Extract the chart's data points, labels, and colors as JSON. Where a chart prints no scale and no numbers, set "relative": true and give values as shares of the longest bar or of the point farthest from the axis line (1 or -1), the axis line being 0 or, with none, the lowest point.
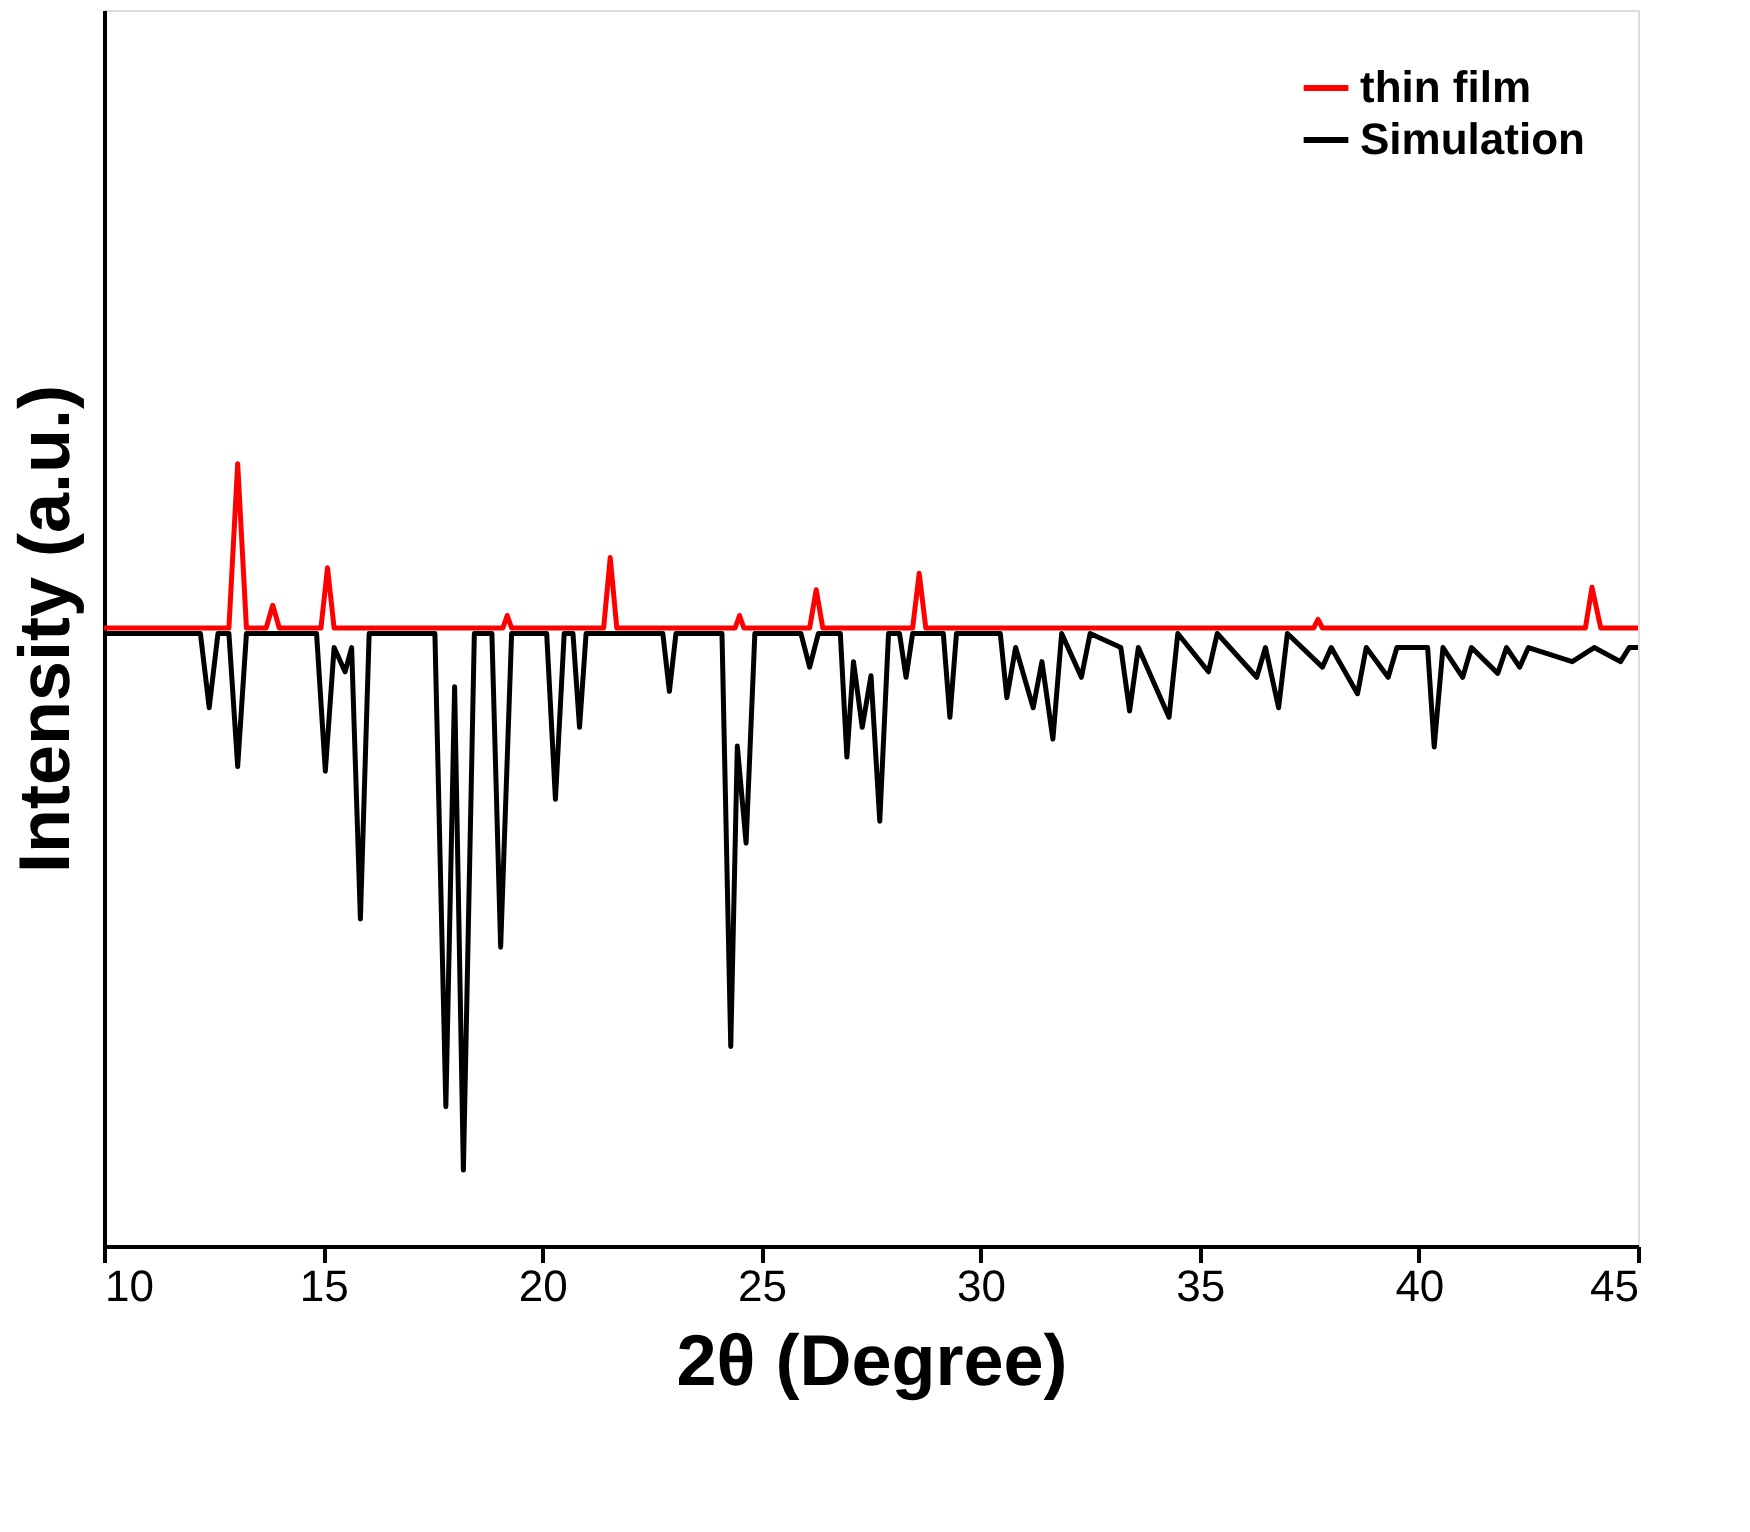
{
  "chart_data": {
    "type": "line",
    "xlabel": "2θ (Degree)",
    "ylabel": "Intensity (a.u.)",
    "relative": true,
    "xlim": [
      10,
      45
    ],
    "xticks": [
      10,
      15,
      20,
      25,
      30,
      35,
      40,
      45
    ],
    "tick_labels": "x",
    "grid": false,
    "legend": "top right",
    "marker": "none",
    "line_style": "solid",
    "series": [
      {
        "name": "thin film",
        "color": "#ff0000",
        "x": [
          10,
          12.85,
          13.05,
          13.25,
          13.7,
          13.85,
          14.0,
          14.95,
          15.1,
          15.25,
          19.1,
          19.2,
          19.3,
          21.4,
          21.55,
          21.7,
          24.4,
          24.5,
          24.6,
          26.1,
          26.25,
          26.4,
          28.45,
          28.6,
          28.75,
          37.6,
          37.7,
          37.8,
          43.8,
          43.95,
          44.15,
          45
        ],
        "values": [
          0.79,
          0.79,
          1.0,
          0.79,
          0.79,
          0.819,
          0.79,
          0.79,
          0.867,
          0.79,
          0.79,
          0.806,
          0.79,
          0.79,
          0.88,
          0.79,
          0.79,
          0.806,
          0.79,
          0.79,
          0.839,
          0.79,
          0.79,
          0.86,
          0.79,
          0.79,
          0.801,
          0.79,
          0.79,
          0.842,
          0.79,
          0.79
        ]
      },
      {
        "name": "Simulation",
        "color": "#000000",
        "x": [
          10,
          12.2,
          12.4,
          12.6,
          12.85,
          13.05,
          13.25,
          14.85,
          15.05,
          15.25,
          15.5,
          15.65,
          15.85,
          16.05,
          17.55,
          17.8,
          18.0,
          18.2,
          18.45,
          18.85,
          19.05,
          19.3,
          20.1,
          20.3,
          20.5,
          20.7,
          20.85,
          21.0,
          22.75,
          22.9,
          23.05,
          24.1,
          24.3,
          24.45,
          24.65,
          24.85,
          25.9,
          26.1,
          26.3,
          26.8,
          26.95,
          27.1,
          27.3,
          27.5,
          27.7,
          27.9,
          28.15,
          28.3,
          28.45,
          29.15,
          29.3,
          29.45,
          30.45,
          30.6,
          30.8,
          31.2,
          31.4,
          31.65,
          31.85,
          32.3,
          32.5,
          33.2,
          33.4,
          33.6,
          34.3,
          34.5,
          35.2,
          35.4,
          36.3,
          36.5,
          36.8,
          37.0,
          37.8,
          38.0,
          38.6,
          38.8,
          39.3,
          39.5,
          40.2,
          40.35,
          40.55,
          41.0,
          41.2,
          41.8,
          42.0,
          42.3,
          42.5,
          43.5,
          44.0,
          44.6,
          44.8,
          45
        ],
        "values": [
          0.783,
          0.783,
          0.688,
          0.783,
          0.783,
          0.613,
          0.783,
          0.783,
          0.607,
          0.765,
          0.734,
          0.765,
          0.418,
          0.783,
          0.783,
          0.178,
          0.715,
          0.097,
          0.783,
          0.783,
          0.382,
          0.783,
          0.783,
          0.571,
          0.783,
          0.783,
          0.663,
          0.783,
          0.783,
          0.709,
          0.783,
          0.783,
          0.255,
          0.639,
          0.515,
          0.783,
          0.783,
          0.74,
          0.783,
          0.783,
          0.625,
          0.747,
          0.663,
          0.729,
          0.543,
          0.783,
          0.783,
          0.727,
          0.783,
          0.783,
          0.676,
          0.783,
          0.783,
          0.701,
          0.765,
          0.688,
          0.747,
          0.648,
          0.783,
          0.727,
          0.783,
          0.765,
          0.684,
          0.765,
          0.676,
          0.783,
          0.734,
          0.783,
          0.727,
          0.765,
          0.688,
          0.783,
          0.74,
          0.765,
          0.706,
          0.765,
          0.727,
          0.765,
          0.765,
          0.638,
          0.765,
          0.727,
          0.765,
          0.732,
          0.765,
          0.74,
          0.765,
          0.747,
          0.765,
          0.747,
          0.765,
          0.765
        ]
      }
    ]
  }
}
